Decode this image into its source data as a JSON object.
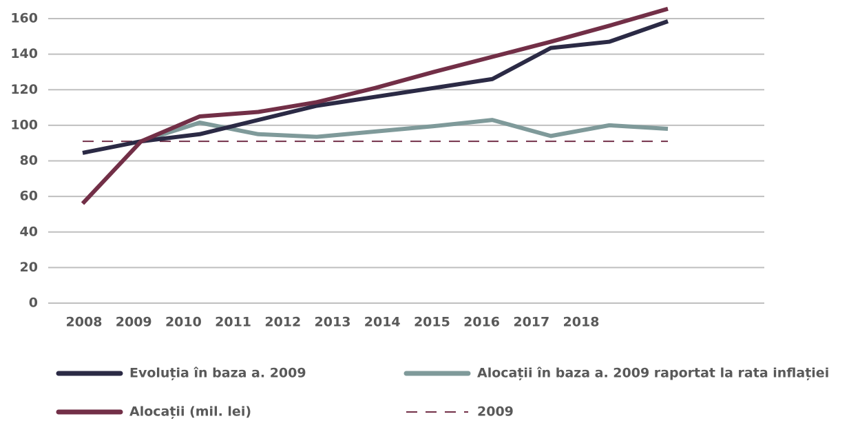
{
  "chart_data": {
    "type": "line",
    "categories": [
      "2008",
      "2009",
      "2010",
      "2011",
      "2012",
      "2013",
      "2014",
      "2015",
      "2016",
      "2017",
      "2018"
    ],
    "series": [
      {
        "name": "Evoluția în baza a. 2009",
        "color": "#2b2a45",
        "values": [
          84.5,
          91,
          95,
          103,
          111,
          116,
          121,
          126,
          143.5,
          147,
          158.5
        ]
      },
      {
        "name": "Alocații în baza a. 2009 raportat la rata inflației",
        "color": "#7f9a9a",
        "values": [
          null,
          91,
          101.5,
          95,
          93.5,
          96.5,
          99.5,
          103,
          94,
          100,
          98
        ]
      },
      {
        "name": "Alocații (mil. lei)",
        "color": "#722f47",
        "values": [
          56,
          91,
          105,
          107.5,
          113,
          121,
          130,
          138.5,
          147,
          156,
          165.5
        ]
      },
      {
        "name": "2009",
        "color": "#722f47",
        "dashed": true,
        "values": [
          91,
          91,
          91,
          91,
          91,
          91,
          91,
          91,
          91,
          91,
          91
        ]
      }
    ],
    "ylim": [
      0,
      160
    ],
    "yticks": [
      0,
      20,
      40,
      60,
      80,
      100,
      120,
      140,
      160
    ],
    "grid": true
  }
}
